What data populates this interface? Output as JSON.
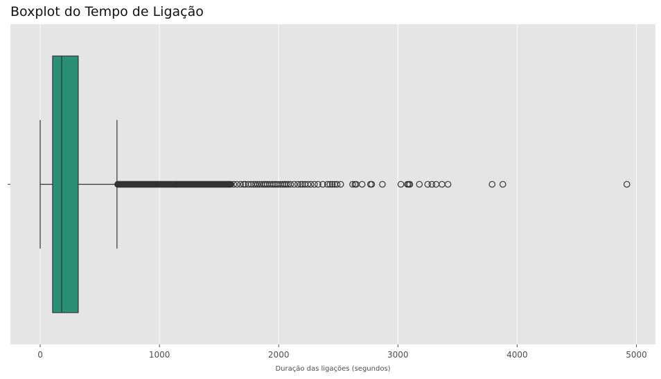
{
  "chart_data": {
    "type": "boxplot",
    "title": "Boxplot do Tempo de Ligação",
    "xlabel": "Duração das ligações (segundos)",
    "ylabel": "",
    "xlim": [
      -250,
      5160
    ],
    "xticks": [
      0,
      1000,
      2000,
      3000,
      4000,
      5000
    ],
    "xtick_labels": [
      "0",
      "1000",
      "2000",
      "3000",
      "4000",
      "5000"
    ],
    "ytick_labels": [
      ""
    ],
    "grid": true,
    "box": {
      "whisker_low": 0,
      "q1": 104,
      "median": 180,
      "q3": 319,
      "whisker_high": 644,
      "color": "#2a9073"
    },
    "outlier_sparse_values": [
      1623,
      1650,
      1680,
      1705,
      1720,
      1745,
      1770,
      1790,
      1805,
      1822,
      1840,
      1858,
      1876,
      1890,
      1905,
      1922,
      1938,
      1955,
      1970,
      1985,
      2000,
      2018,
      2035,
      2050,
      2065,
      2080,
      2100,
      2130,
      2160,
      2185,
      2200,
      2220,
      2245,
      2270,
      2300,
      2330,
      2370,
      2410,
      2430,
      2450,
      2470,
      2490,
      2520,
      2620,
      2640,
      2650,
      2700,
      2770,
      2780,
      2870,
      3025,
      3080,
      3090,
      3100,
      3180,
      3250,
      3285,
      3320,
      3370,
      3420,
      3790,
      3880,
      4920
    ],
    "outlier_dense_range": [
      650,
      1600
    ],
    "colors": {
      "panel": "#e5e5e5",
      "grid": "#ffffff",
      "line": "#333333",
      "box": "#2a9073"
    }
  }
}
